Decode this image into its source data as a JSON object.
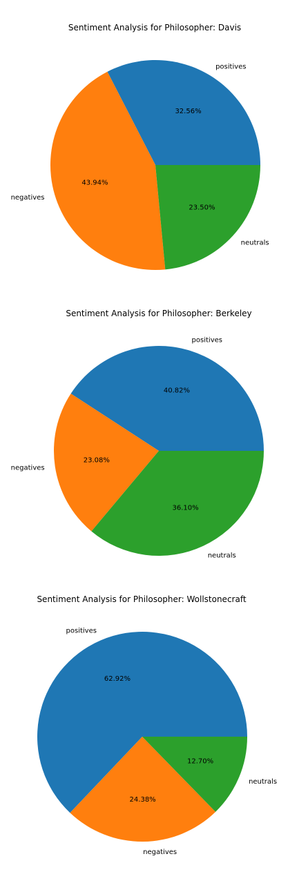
{
  "chart_data": [
    {
      "type": "pie",
      "title": "Sentiment Analysis for  Philosopher: Davis",
      "categories": [
        "positives",
        "negatives",
        "neutrals"
      ],
      "values": [
        32.56,
        43.94,
        23.5
      ],
      "value_labels": [
        "32.56%",
        "43.94%",
        "23.50%"
      ],
      "colors": [
        "#1f77b4",
        "#ff7f0e",
        "#2ca02c"
      ],
      "start_angle_deg": 0,
      "direction": "counterclockwise"
    },
    {
      "type": "pie",
      "title": "Sentiment Analysis for  Philosopher: Berkeley",
      "categories": [
        "positives",
        "negatives",
        "neutrals"
      ],
      "values": [
        40.82,
        23.08,
        36.1
      ],
      "value_labels": [
        "40.82%",
        "23.08%",
        "36.10%"
      ],
      "colors": [
        "#1f77b4",
        "#ff7f0e",
        "#2ca02c"
      ],
      "start_angle_deg": 0,
      "direction": "counterclockwise"
    },
    {
      "type": "pie",
      "title": "Sentiment Analysis for  Philosopher: Wollstonecraft",
      "categories": [
        "positives",
        "negatives",
        "neutrals"
      ],
      "values": [
        62.92,
        24.38,
        12.7
      ],
      "value_labels": [
        "62.92%",
        "24.38%",
        "12.70%"
      ],
      "colors": [
        "#1f77b4",
        "#ff7f0e",
        "#2ca02c"
      ],
      "start_angle_deg": 0,
      "direction": "counterclockwise"
    }
  ]
}
